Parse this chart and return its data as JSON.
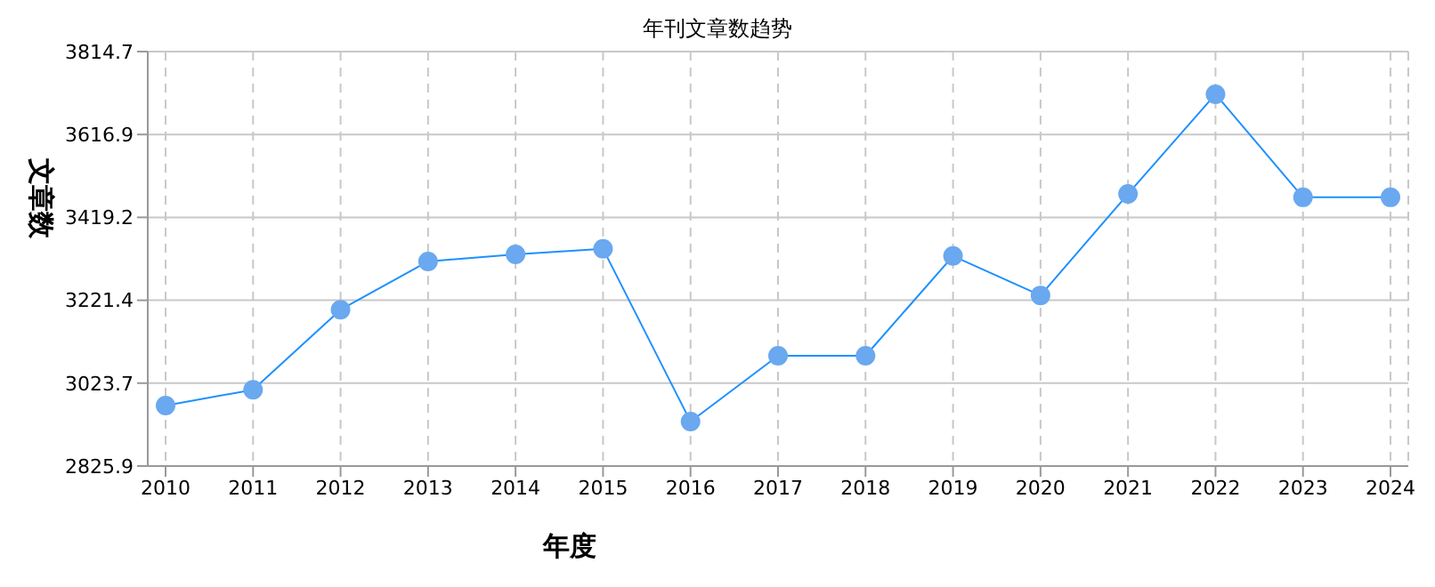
{
  "chart_data": {
    "type": "line",
    "title": "年刊文章数趋势",
    "xlabel": "年度",
    "ylabel": "文章数",
    "categories": [
      "2010",
      "2011",
      "2012",
      "2013",
      "2014",
      "2015",
      "2016",
      "2017",
      "2018",
      "2019",
      "2020",
      "2021",
      "2022",
      "2023",
      "2024"
    ],
    "series": [
      {
        "color": "#1e90ff",
        "values": [
          2970,
          3008,
          3199,
          3314,
          3331,
          3344,
          2932,
          3089,
          3089,
          3327,
          3233,
          3475,
          3713,
          3467,
          3467
        ]
      }
    ],
    "ylim": [
      2825.9,
      3814.7
    ],
    "yticks": [
      2825.9,
      3023.7,
      3221.4,
      3419.2,
      3616.9,
      3814.7
    ],
    "grid": true,
    "marker": "circle",
    "line_style": "solid"
  }
}
